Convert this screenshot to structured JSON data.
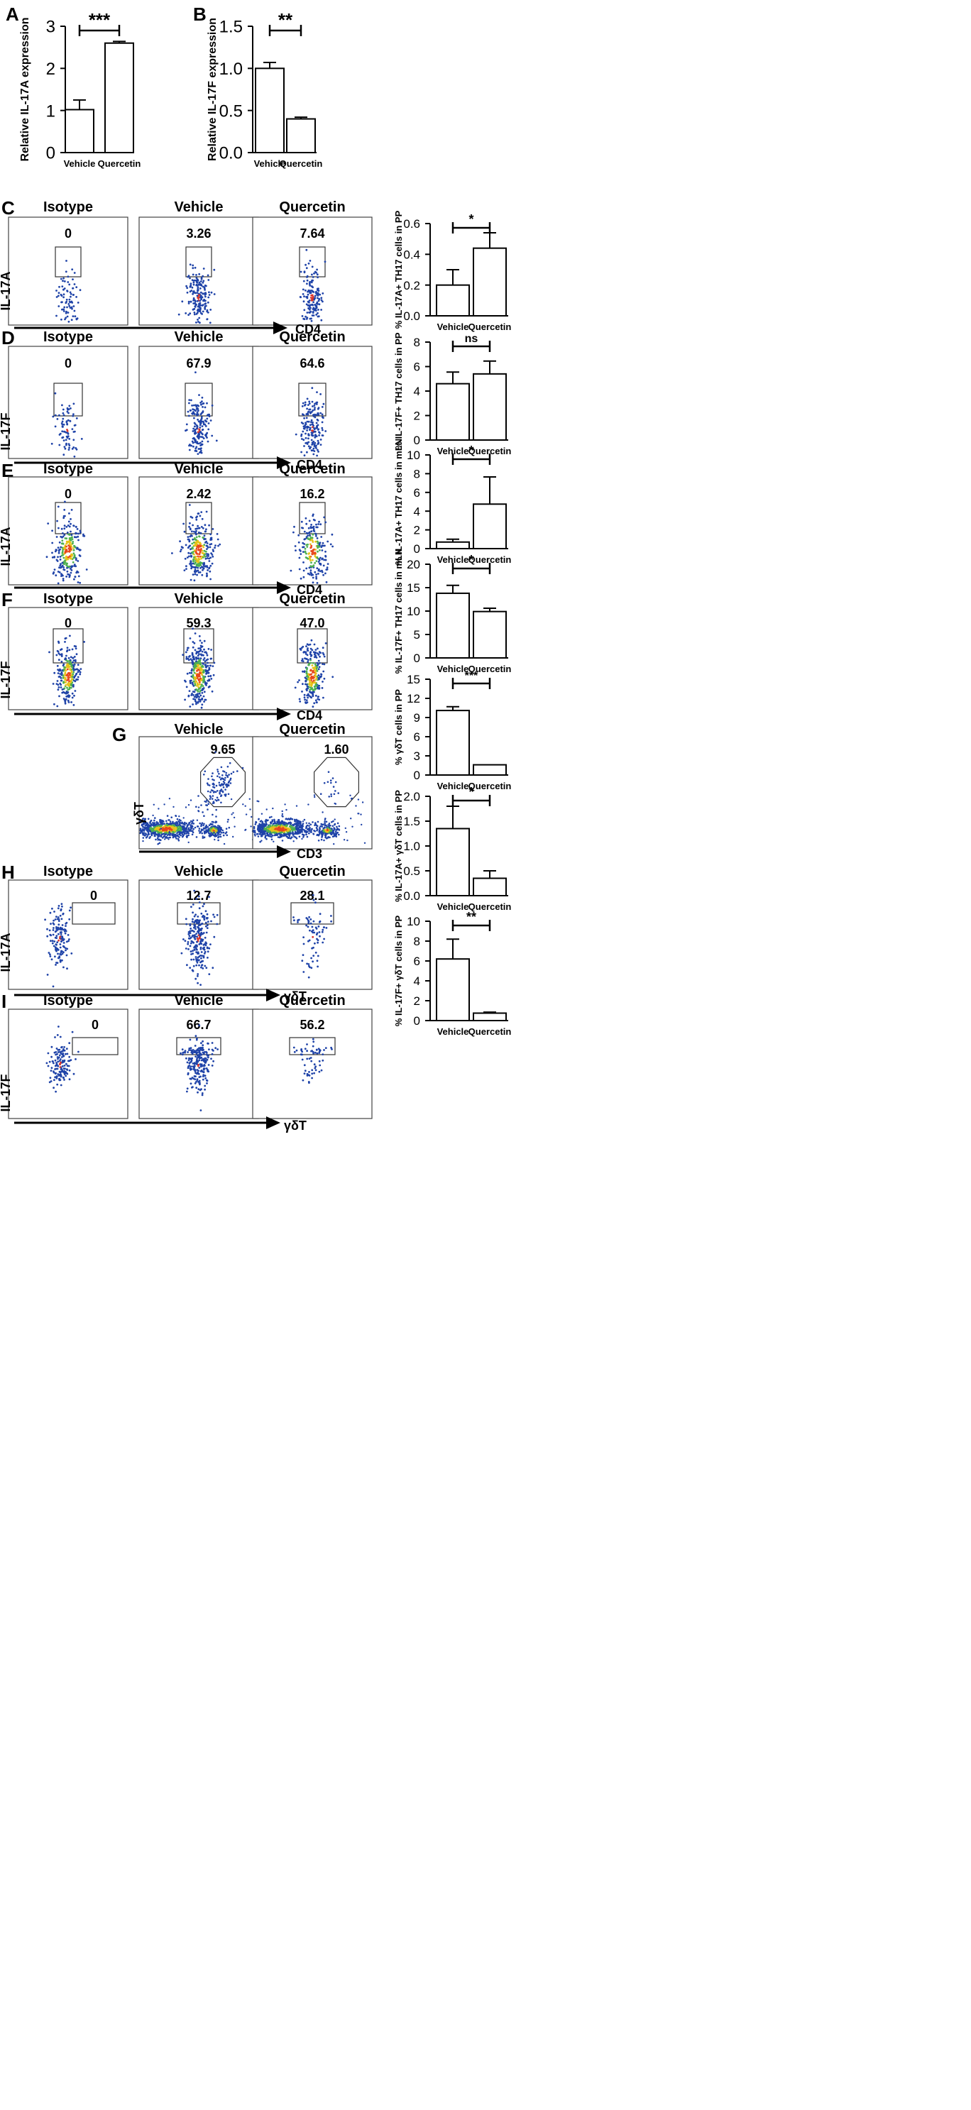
{
  "figure": {
    "bar_charts": {
      "A": {
        "letter": "A",
        "ylabel": "Relative IL-17A expression",
        "ticks": [
          "0",
          "1",
          "2",
          "3"
        ],
        "sig": "***",
        "vehicle_label": "Vehicle",
        "quercetin_label": "Quercetin"
      },
      "B": {
        "letter": "B",
        "ylabel": "Relative IL-17F expression",
        "ticks": [
          "0.0",
          "0.5",
          "1.0",
          "1.5"
        ],
        "sig": "**",
        "vehicle_label": "Vehicle",
        "quercetin_label": "Quercetin"
      },
      "C": {
        "ylabel": "% IL-17A+ TH17 cells in PP",
        "ticks": [
          "0.0",
          "0.2",
          "0.4",
          "0.6"
        ],
        "sig": "*",
        "vehicle_label": "Vehicle",
        "quercetin_label": "Quercetin"
      },
      "D": {
        "ylabel": "% IL-17F+ TH17 cells in PP",
        "ticks": [
          "0",
          "2",
          "4",
          "6",
          "8"
        ],
        "sig": "ns",
        "vehicle_label": "Vehicle",
        "quercetin_label": "Quercetin"
      },
      "E": {
        "ylabel": "% IL-17A+ TH17 cells in mLN",
        "ticks": [
          "0",
          "2",
          "4",
          "6",
          "8",
          "10"
        ],
        "sig": "*",
        "vehicle_label": "Vehicle",
        "quercetin_label": "Quercetin"
      },
      "F": {
        "ylabel": "% IL-17F+ TH17 cells in mLN",
        "ticks": [
          "0",
          "5",
          "10",
          "15",
          "20"
        ],
        "sig": "*",
        "vehicle_label": "Vehicle",
        "quercetin_label": "Quercetin"
      },
      "G": {
        "ylabel": "% γδT  cells in PP",
        "ticks": [
          "0",
          "3",
          "6",
          "9",
          "12",
          "15"
        ],
        "sig": "***",
        "vehicle_label": "Vehicle",
        "quercetin_label": "Quercetin"
      },
      "H": {
        "ylabel": "% IL-17A+ γδT cells in PP",
        "ticks": [
          "0.0",
          "0.5",
          "1.0",
          "1.5",
          "2.0"
        ],
        "sig": "*",
        "vehicle_label": "Vehicle",
        "quercetin_label": "Quercetin"
      },
      "I": {
        "ylabel": "% IL-17F+ γδT cells in PP",
        "ticks": [
          "0",
          "2",
          "4",
          "6",
          "8",
          "10"
        ],
        "sig": "**",
        "vehicle_label": "Vehicle",
        "quercetin_label": "Quercetin"
      }
    },
    "flow_rows": {
      "C": {
        "letter": "C",
        "titles": [
          "Isotype",
          "Vehicle",
          "Quercetin"
        ],
        "values": [
          "0",
          "3.26",
          "7.64"
        ],
        "yaxis": "IL-17A",
        "xaxis": "CD4"
      },
      "D": {
        "letter": "D",
        "titles": [
          "Isotype",
          "Vehicle",
          "Quercetin"
        ],
        "values": [
          "0",
          "67.9",
          "64.6"
        ],
        "yaxis": "IL-17F",
        "xaxis": "CD4"
      },
      "E": {
        "letter": "E",
        "titles": [
          "Isotype",
          "Vehicle",
          "Quercetin"
        ],
        "values": [
          "0",
          "2.42",
          "16.2"
        ],
        "yaxis": "IL-17A",
        "xaxis": "CD4"
      },
      "F": {
        "letter": "F",
        "titles": [
          "Isotype",
          "Vehicle",
          "Quercetin"
        ],
        "values": [
          "0",
          "59.3",
          "47.0"
        ],
        "yaxis": "IL-17F",
        "xaxis": "CD4"
      },
      "G": {
        "letter": "G",
        "titles": [
          "Vehicle",
          "Quercetin"
        ],
        "values": [
          "9.65",
          "1.60"
        ],
        "yaxis": "γδT",
        "xaxis": "CD3"
      },
      "H": {
        "letter": "H",
        "titles": [
          "Isotype",
          "Vehicle",
          "Quercetin"
        ],
        "values": [
          "0",
          "12.7",
          "28.1"
        ],
        "yaxis": "IL-17A",
        "xaxis": "γδT"
      },
      "I": {
        "letter": "I",
        "titles": [
          "Isotype",
          "Vehicle",
          "Quercetin"
        ],
        "values": [
          "0",
          "66.7",
          "56.2"
        ],
        "yaxis": "IL-17F",
        "xaxis": "γδT"
      }
    }
  },
  "chart_data": [
    {
      "id": "A",
      "type": "bar",
      "title": "",
      "xlabel": "",
      "ylabel": "Relative IL-17A expression",
      "categories": [
        "Vehicle",
        "Quercetin"
      ],
      "values": [
        1.02,
        2.6
      ],
      "errors": [
        0.23,
        0.04
      ],
      "ylim": [
        0,
        3
      ],
      "significance": "***"
    },
    {
      "id": "B",
      "type": "bar",
      "title": "",
      "xlabel": "",
      "ylabel": "Relative IL-17F expression",
      "categories": [
        "Vehicle",
        "Quercetin"
      ],
      "values": [
        1.0,
        0.4
      ],
      "errors": [
        0.07,
        0.02
      ],
      "ylim": [
        0,
        1.5
      ],
      "significance": "**"
    },
    {
      "id": "C",
      "type": "bar",
      "title": "",
      "xlabel": "",
      "ylabel": "% IL-17A+ TH17 cells in PP",
      "categories": [
        "Vehicle",
        "Quercetin"
      ],
      "values": [
        0.2,
        0.44
      ],
      "errors": [
        0.1,
        0.1
      ],
      "ylim": [
        0,
        0.6
      ],
      "significance": "*"
    },
    {
      "id": "D",
      "type": "bar",
      "title": "",
      "xlabel": "",
      "ylabel": "% IL-17F+ TH17 cells in PP",
      "categories": [
        "Vehicle",
        "Quercetin"
      ],
      "values": [
        4.6,
        5.4
      ],
      "errors": [
        0.95,
        1.05
      ],
      "ylim": [
        0,
        8
      ],
      "significance": "ns"
    },
    {
      "id": "E",
      "type": "bar",
      "title": "",
      "xlabel": "",
      "ylabel": "% IL-17A+ TH17 cells in mLN",
      "categories": [
        "Vehicle",
        "Quercetin"
      ],
      "values": [
        0.7,
        4.75
      ],
      "errors": [
        0.3,
        2.9
      ],
      "ylim": [
        0,
        10
      ],
      "significance": "*"
    },
    {
      "id": "F",
      "type": "bar",
      "title": "",
      "xlabel": "",
      "ylabel": "% IL-17F+ TH17 cells in mLN",
      "categories": [
        "Vehicle",
        "Quercetin"
      ],
      "values": [
        13.8,
        9.9
      ],
      "errors": [
        1.7,
        0.7
      ],
      "ylim": [
        0,
        20
      ],
      "significance": "*"
    },
    {
      "id": "G",
      "type": "bar",
      "title": "",
      "xlabel": "",
      "ylabel": "% γδT  cells in PP",
      "categories": [
        "Vehicle",
        "Quercetin"
      ],
      "values": [
        10.1,
        1.6
      ],
      "errors": [
        0.6,
        0.0
      ],
      "ylim": [
        0,
        15
      ],
      "significance": "***"
    },
    {
      "id": "H",
      "type": "bar",
      "title": "",
      "xlabel": "",
      "ylabel": "% IL-17A+ γδT cells in PP",
      "categories": [
        "Vehicle",
        "Quercetin"
      ],
      "values": [
        1.35,
        0.35
      ],
      "errors": [
        0.45,
        0.15
      ],
      "ylim": [
        0,
        2
      ],
      "significance": "*"
    },
    {
      "id": "I",
      "type": "bar",
      "title": "",
      "xlabel": "",
      "ylabel": "% IL-17F+ γδT cells in PP",
      "categories": [
        "Vehicle",
        "Quercetin"
      ],
      "values": [
        6.2,
        0.75
      ],
      "errors": [
        2.0,
        0.1
      ],
      "ylim": [
        0,
        10
      ],
      "significance": "**"
    }
  ]
}
